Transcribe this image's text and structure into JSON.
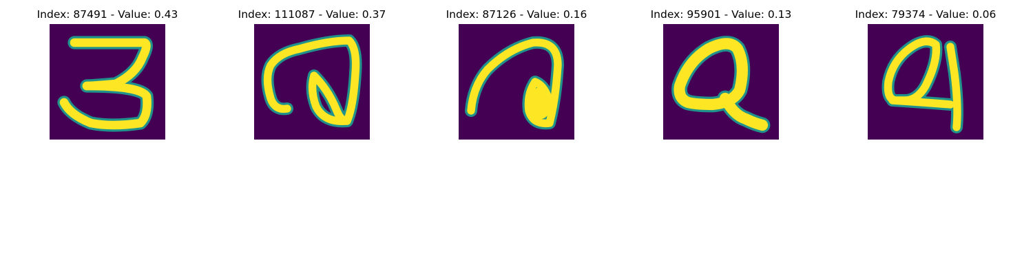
{
  "figure": {
    "panels": [
      {
        "title": "Index: 87491 - Value: 0.43",
        "glyph": "3",
        "depicts": "handwritten-glyph-3"
      },
      {
        "title": "Index: 111087 - Value: 0.37",
        "glyph": "ת",
        "depicts": "handwritten-glyph-loop"
      },
      {
        "title": "Index: 87126 - Value: 0.16",
        "glyph": "a",
        "depicts": "handwritten-glyph-a"
      },
      {
        "title": "Index: 95901 - Value: 0.13",
        "glyph": "Q",
        "depicts": "handwritten-glyph-q"
      },
      {
        "title": "Index: 79374 - Value: 0.06",
        "glyph": "a",
        "depicts": "handwritten-glyph-a-alt"
      }
    ],
    "colors": {
      "background": "#440154",
      "foreground": "#fde725",
      "edge": "#21918c",
      "edge_light": "#5ec962"
    }
  }
}
